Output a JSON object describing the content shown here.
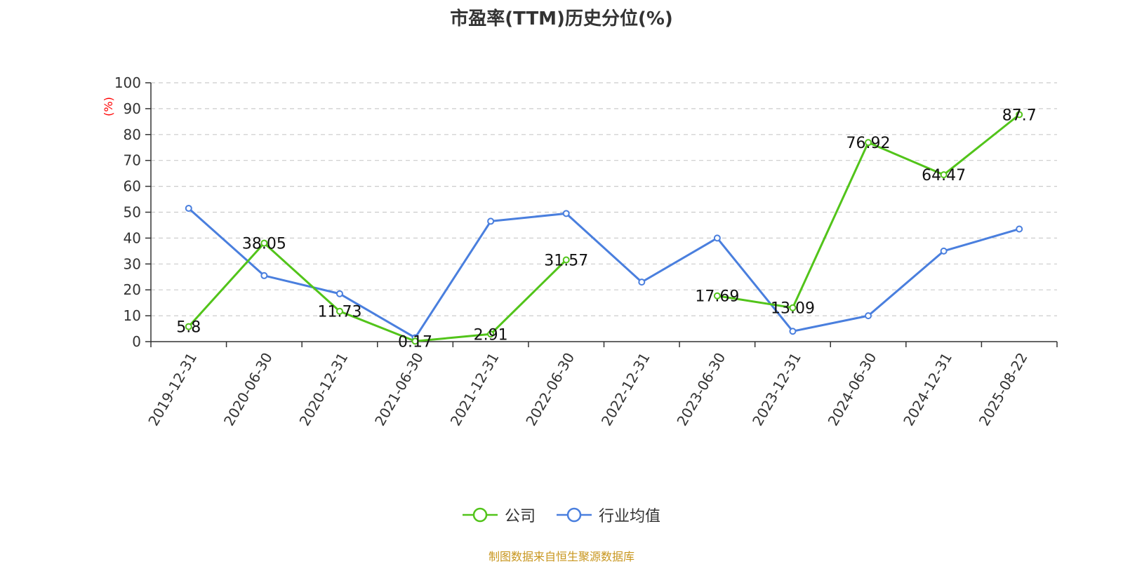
{
  "title": "市盈率(TTM)历史分位(%)",
  "source": "制图数据来自恒生聚源数据库",
  "colors": {
    "company": "#52c41a",
    "industry": "#4a7fde",
    "unit": "#ff0000",
    "source": "#c8961e",
    "grid": "#cccccc",
    "axis": "#333333"
  },
  "chart_data": {
    "type": "line",
    "title": "市盈率(TTM)历史分位(%)",
    "ylabel": "(%)",
    "xlabel": "",
    "ylim": [
      0,
      100
    ],
    "yticks": [
      0,
      10,
      20,
      30,
      40,
      50,
      60,
      70,
      80,
      90,
      100
    ],
    "grid": true,
    "legend_position": "bottom-center",
    "categories": [
      "2019-12-31",
      "2020-06-30",
      "2020-12-31",
      "2021-06-30",
      "2021-12-31",
      "2022-06-30",
      "2022-12-31",
      "2023-06-30",
      "2023-12-31",
      "2024-06-30",
      "2024-12-31",
      "2025-08-22"
    ],
    "series": [
      {
        "name": "公司",
        "color": "#52c41a",
        "show_labels": true,
        "values": [
          5.8,
          38.05,
          11.73,
          0.17,
          2.91,
          31.57,
          null,
          17.69,
          13.09,
          76.92,
          64.47,
          87.7
        ]
      },
      {
        "name": "行业均值",
        "color": "#4a7fde",
        "show_labels": false,
        "values": [
          51.5,
          25.5,
          18.5,
          1.5,
          46.5,
          49.5,
          23.0,
          40.0,
          4.0,
          10.0,
          35.0,
          43.5
        ]
      }
    ]
  }
}
